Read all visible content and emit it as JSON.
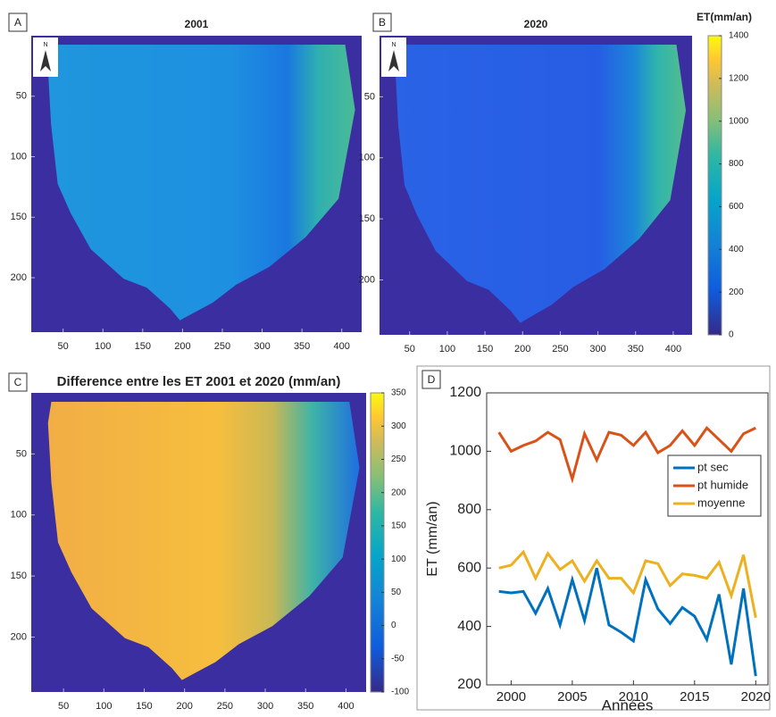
{
  "chart_data": [
    {
      "type": "map",
      "panel_label": "A",
      "title": "2001",
      "north_label": "N",
      "xlim": [
        10,
        425
      ],
      "ylim": [
        0,
        245
      ],
      "xticks": [
        50,
        100,
        150,
        200,
        250,
        300,
        350,
        400
      ],
      "yticks": [
        50,
        100,
        150,
        200
      ]
    },
    {
      "type": "map",
      "panel_label": "B",
      "title": "2020",
      "north_label": "N",
      "xlim": [
        10,
        425
      ],
      "ylim": [
        0,
        245
      ],
      "xticks": [
        50,
        100,
        150,
        200,
        250,
        300,
        350,
        400
      ],
      "yticks": [
        50,
        100,
        150,
        200
      ],
      "colorbar": {
        "label": "ET(mm/an)",
        "clim": [
          0,
          1400
        ],
        "ticks": [
          0,
          200,
          400,
          600,
          800,
          1000,
          1200,
          1400
        ]
      }
    },
    {
      "type": "map",
      "panel_label": "C",
      "title": "Difference entre les ET 2001 et 2020 (mm/an)",
      "xlim": [
        10,
        425
      ],
      "ylim": [
        0,
        245
      ],
      "xticks": [
        50,
        100,
        150,
        200,
        250,
        300,
        350,
        400
      ],
      "yticks": [
        50,
        100,
        150,
        200
      ],
      "colorbar": {
        "clim": [
          -100,
          350
        ],
        "ticks": [
          -100,
          -50,
          0,
          50,
          100,
          150,
          200,
          250,
          300,
          350
        ]
      }
    },
    {
      "type": "line",
      "panel_label": "D",
      "x_label": "Années",
      "y_label": "ET (mm/an)",
      "x": [
        1999,
        2000,
        2001,
        2002,
        2003,
        2004,
        2005,
        2006,
        2007,
        2008,
        2009,
        2010,
        2011,
        2012,
        2013,
        2014,
        2015,
        2016,
        2017,
        2018,
        2019,
        2020
      ],
      "xlim": [
        1998,
        2021
      ],
      "ylim": [
        200,
        1200
      ],
      "xticks": [
        2000,
        2005,
        2010,
        2015,
        2020
      ],
      "yticks": [
        200,
        400,
        600,
        800,
        1000,
        1200
      ],
      "legend": "right",
      "series": [
        {
          "name": "pt sec",
          "color": "#0072bd",
          "values": [
            520,
            515,
            520,
            445,
            530,
            405,
            560,
            420,
            600,
            405,
            380,
            350,
            560,
            460,
            410,
            465,
            435,
            355,
            510,
            270,
            530,
            230
          ]
        },
        {
          "name": "pt humide",
          "color": "#d95319",
          "values": [
            1065,
            1000,
            1020,
            1035,
            1065,
            1040,
            905,
            1060,
            970,
            1065,
            1055,
            1020,
            1065,
            995,
            1020,
            1070,
            1020,
            1080,
            1040,
            1000,
            1060,
            1080
          ]
        },
        {
          "name": "moyenne",
          "color": "#edb120",
          "values": [
            600,
            610,
            655,
            565,
            650,
            595,
            625,
            555,
            625,
            565,
            565,
            515,
            625,
            615,
            540,
            580,
            575,
            565,
            620,
            505,
            645,
            430
          ]
        }
      ]
    }
  ]
}
